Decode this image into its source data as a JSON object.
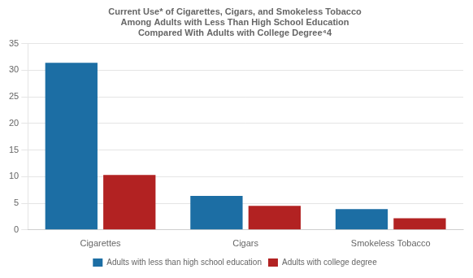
{
  "chart_data": {
    "type": "bar",
    "title": "Current Use* of Cigarettes, Cigars, and Smokeless Tobacco\nAmong Adults with Less Than High School Education\nCompared With Adults with College Degree⁴4",
    "categories": [
      "Cigarettes",
      "Cigars",
      "Smokeless Tobacco"
    ],
    "series": [
      {
        "name": "Adults with less than high school education",
        "color": "#1C6EA4",
        "values": [
          31.4,
          6.4,
          3.9
        ]
      },
      {
        "name": "Adults with college degree",
        "color": "#B22222",
        "values": [
          10.3,
          4.5,
          2.2
        ]
      }
    ],
    "ylim": [
      0,
      35
    ],
    "yticks": [
      0,
      5,
      10,
      15,
      20,
      25,
      30,
      35
    ],
    "grid": true,
    "legend": "bottom"
  }
}
